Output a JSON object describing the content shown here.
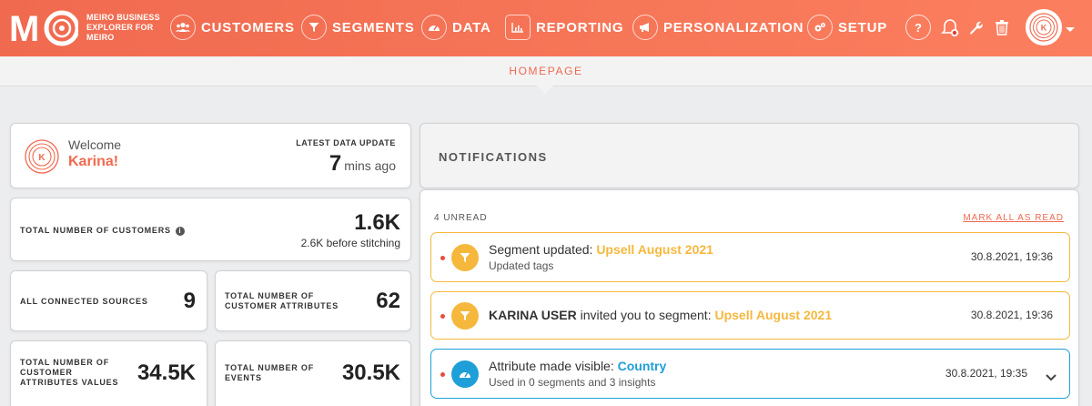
{
  "brand": {
    "logo_text": "MO",
    "line1": "MEIRO BUSINESS",
    "line2": "EXPLORER FOR",
    "line3": "MEIRO"
  },
  "nav": {
    "items": [
      {
        "label": "CUSTOMERS",
        "icon": "users-icon"
      },
      {
        "label": "SEGMENTS",
        "icon": "filter-icon"
      },
      {
        "label": "DATA",
        "icon": "gauge-icon"
      },
      {
        "label": "REPORTING",
        "icon": "chart-icon"
      },
      {
        "label": "PERSONALIZATION",
        "icon": "megaphone-icon"
      },
      {
        "label": "SETUP",
        "icon": "gears-icon"
      }
    ],
    "help_label": "?",
    "avatar_initial": "K"
  },
  "subheader": {
    "title": "HOMEPAGE"
  },
  "welcome": {
    "greeting": "Welcome",
    "name": "Karina!",
    "avatar_initial": "K",
    "update_label": "LATEST DATA UPDATE",
    "update_value": "7",
    "update_unit": "mins ago"
  },
  "stats": {
    "customers": {
      "label": "TOTAL NUMBER OF CUSTOMERS",
      "value": "1.6K",
      "sub": "2.6K before stitching"
    },
    "sources": {
      "label": "ALL CONNECTED SOURCES",
      "value": "9"
    },
    "attributes": {
      "label1": "TOTAL NUMBER OF",
      "label2": "CUSTOMER ATTRIBUTES",
      "value": "62"
    },
    "attr_values": {
      "label1": "TOTAL NUMBER OF",
      "label2": "CUSTOMER",
      "label3": "ATTRIBUTES VALUES",
      "value": "34.5K"
    },
    "events": {
      "label1": "TOTAL NUMBER OF",
      "label2": "EVENTS",
      "value": "30.5K"
    }
  },
  "notifications": {
    "title": "NOTIFICATIONS",
    "unread": "4 UNREAD",
    "mark_all": "MARK ALL AS READ",
    "items": [
      {
        "prefix": "Segment updated: ",
        "highlight": "Upsell August 2021",
        "sub": "Updated tags",
        "date": "30.8.2021, 19:36"
      },
      {
        "user": "KARINA USER",
        "prefix": " invited you to segment: ",
        "highlight": "Upsell August 2021",
        "date": "30.8.2021, 19:36"
      },
      {
        "prefix": "Attribute made visible: ",
        "highlight": "Country",
        "sub": "Used in 0 segments and 3 insights",
        "date": "30.8.2021, 19:35"
      }
    ]
  },
  "colors": {
    "accent": "#f06a4f",
    "warning": "#f5b83d",
    "info": "#1f9fd8"
  }
}
